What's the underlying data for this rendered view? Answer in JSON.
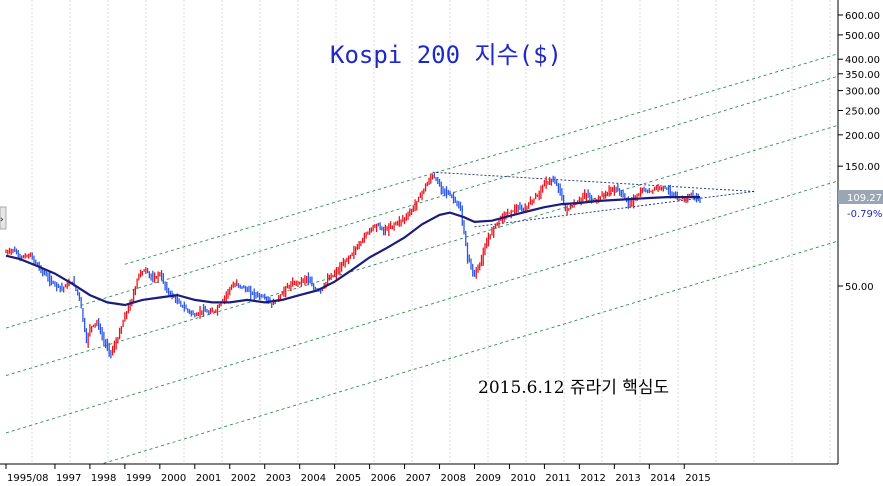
{
  "chart_data": {
    "type": "line",
    "title": "Kospi 200 지수($)",
    "annotation": "2015.6.12 쥬라기 핵심도",
    "xlabel": "",
    "ylabel": "",
    "y_scale": "log",
    "ylim": [
      25,
      650
    ],
    "y_ticks": [
      "600.00",
      "500.00",
      "400.00",
      "350.00",
      "300.00",
      "250.00",
      "200.00",
      "150.00",
      "50.00"
    ],
    "y_tick_values": [
      600,
      500,
      400,
      350,
      300,
      250,
      200,
      150,
      50
    ],
    "x_ticks": [
      "1995/08",
      "1997",
      "1998",
      "1999",
      "2000",
      "2001",
      "2002",
      "2003",
      "2004",
      "2005",
      "2006",
      "2007",
      "2008",
      "2009",
      "2010",
      "2011",
      "2012",
      "2013",
      "2014",
      "2015"
    ],
    "x_tick_values": [
      1995.6,
      1997,
      1998,
      1999,
      2000,
      2001,
      2002,
      2003,
      2004,
      2005,
      2006,
      2007,
      2008,
      2009,
      2010,
      2011,
      2012,
      2013,
      2014,
      2015
    ],
    "last_value": "109.27",
    "last_change": "-0.79%",
    "grid": true,
    "colors": {
      "up": "#e8141e",
      "down": "#2b56e8",
      "ma": "#1a1d7a",
      "channel": "#2f8c5a",
      "triangle": "#1a2a7a",
      "title": "#1f28c8",
      "lastbox": "#9aa6b4"
    },
    "series": [
      {
        "values": [
          [
            1995.6,
            68
          ],
          [
            1995.8,
            70
          ],
          [
            1996.0,
            65
          ],
          [
            1996.3,
            66
          ],
          [
            1996.6,
            58
          ],
          [
            1996.9,
            52
          ],
          [
            1997.2,
            49
          ],
          [
            1997.5,
            52
          ],
          [
            1997.7,
            45
          ],
          [
            1997.9,
            30
          ],
          [
            1998.0,
            34
          ],
          [
            1998.2,
            36
          ],
          [
            1998.4,
            30
          ],
          [
            1998.6,
            27
          ],
          [
            1998.8,
            31
          ],
          [
            1999.0,
            38
          ],
          [
            1999.2,
            44
          ],
          [
            1999.4,
            56
          ],
          [
            1999.6,
            58
          ],
          [
            1999.8,
            53
          ],
          [
            2000.0,
            56
          ],
          [
            2000.2,
            48
          ],
          [
            2000.4,
            45
          ],
          [
            2000.6,
            42
          ],
          [
            2000.8,
            40
          ],
          [
            2001.0,
            38
          ],
          [
            2001.2,
            40
          ],
          [
            2001.4,
            39
          ],
          [
            2001.6,
            40
          ],
          [
            2001.8,
            44
          ],
          [
            2002.0,
            49
          ],
          [
            2002.2,
            51
          ],
          [
            2002.4,
            49
          ],
          [
            2002.6,
            47
          ],
          [
            2002.8,
            46
          ],
          [
            2003.0,
            45
          ],
          [
            2003.2,
            42
          ],
          [
            2003.4,
            45
          ],
          [
            2003.6,
            49
          ],
          [
            2003.8,
            51
          ],
          [
            2004.0,
            52
          ],
          [
            2004.2,
            54
          ],
          [
            2004.4,
            49
          ],
          [
            2004.6,
            48
          ],
          [
            2004.8,
            53
          ],
          [
            2005.0,
            56
          ],
          [
            2005.2,
            60
          ],
          [
            2005.4,
            65
          ],
          [
            2005.6,
            70
          ],
          [
            2005.8,
            77
          ],
          [
            2006.0,
            84
          ],
          [
            2006.2,
            88
          ],
          [
            2006.4,
            83
          ],
          [
            2006.6,
            86
          ],
          [
            2006.8,
            90
          ],
          [
            2007.0,
            93
          ],
          [
            2007.2,
            100
          ],
          [
            2007.4,
            112
          ],
          [
            2007.6,
            125
          ],
          [
            2007.8,
            138
          ],
          [
            2008.0,
            126
          ],
          [
            2008.2,
            118
          ],
          [
            2008.4,
            112
          ],
          [
            2008.6,
            100
          ],
          [
            2008.8,
            65
          ],
          [
            2009.0,
            55
          ],
          [
            2009.2,
            64
          ],
          [
            2009.4,
            78
          ],
          [
            2009.6,
            88
          ],
          [
            2009.8,
            95
          ],
          [
            2010.0,
            98
          ],
          [
            2010.2,
            102
          ],
          [
            2010.4,
            100
          ],
          [
            2010.6,
            108
          ],
          [
            2010.8,
            115
          ],
          [
            2011.0,
            128
          ],
          [
            2011.2,
            132
          ],
          [
            2011.4,
            125
          ],
          [
            2011.6,
            100
          ],
          [
            2011.8,
            104
          ],
          [
            2012.0,
            110
          ],
          [
            2012.2,
            116
          ],
          [
            2012.4,
            108
          ],
          [
            2012.6,
            113
          ],
          [
            2012.8,
            118
          ],
          [
            2013.0,
            122
          ],
          [
            2013.2,
            118
          ],
          [
            2013.4,
            106
          ],
          [
            2013.6,
            112
          ],
          [
            2013.8,
            120
          ],
          [
            2014.0,
            119
          ],
          [
            2014.2,
            123
          ],
          [
            2014.4,
            124
          ],
          [
            2014.6,
            119
          ],
          [
            2014.8,
            110
          ],
          [
            2015.0,
            111
          ],
          [
            2015.2,
            116
          ],
          [
            2015.45,
            109.27
          ]
        ]
      },
      {
        "values": [
          [
            1995.6,
            66
          ],
          [
            1996.0,
            64
          ],
          [
            1996.5,
            60
          ],
          [
            1997.0,
            56
          ],
          [
            1997.5,
            51
          ],
          [
            1998.0,
            46
          ],
          [
            1998.5,
            43
          ],
          [
            1999.0,
            42
          ],
          [
            1999.5,
            44
          ],
          [
            2000.0,
            45
          ],
          [
            2000.5,
            46
          ],
          [
            2001.0,
            44
          ],
          [
            2001.5,
            43
          ],
          [
            2002.0,
            43
          ],
          [
            2002.5,
            44
          ],
          [
            2003.0,
            43
          ],
          [
            2003.5,
            44
          ],
          [
            2004.0,
            46
          ],
          [
            2004.5,
            48
          ],
          [
            2005.0,
            52
          ],
          [
            2005.5,
            58
          ],
          [
            2006.0,
            65
          ],
          [
            2006.5,
            71
          ],
          [
            2007.0,
            78
          ],
          [
            2007.5,
            88
          ],
          [
            2008.0,
            96
          ],
          [
            2008.3,
            98
          ],
          [
            2008.7,
            94
          ],
          [
            2009.0,
            90
          ],
          [
            2009.5,
            91
          ],
          [
            2010.0,
            95
          ],
          [
            2010.5,
            99
          ],
          [
            2011.0,
            103
          ],
          [
            2011.5,
            106
          ],
          [
            2012.0,
            107
          ],
          [
            2012.5,
            109
          ],
          [
            2013.0,
            110
          ],
          [
            2013.5,
            111
          ],
          [
            2014.0,
            112
          ],
          [
            2014.5,
            113
          ],
          [
            2015.0,
            113
          ],
          [
            2015.45,
            113
          ]
        ]
      }
    ],
    "trend_lines": [
      [
        [
          1999.0,
          61
        ],
        [
          2024.0,
          650
        ]
      ],
      [
        [
          1995.6,
          34
        ],
        [
          2024.0,
          535
        ]
      ],
      [
        [
          1995.6,
          22
        ],
        [
          2024.0,
          340
        ]
      ],
      [
        [
          1995.6,
          13
        ],
        [
          2024.0,
          205
        ]
      ],
      [
        [
          1995.6,
          7.5
        ],
        [
          2024.0,
          118
        ]
      ]
    ],
    "triangle": [
      [
        [
          2007.8,
          142
        ],
        [
          2017.0,
          119
        ]
      ],
      [
        [
          2009.0,
          86
        ],
        [
          2017.0,
          119
        ]
      ]
    ]
  }
}
